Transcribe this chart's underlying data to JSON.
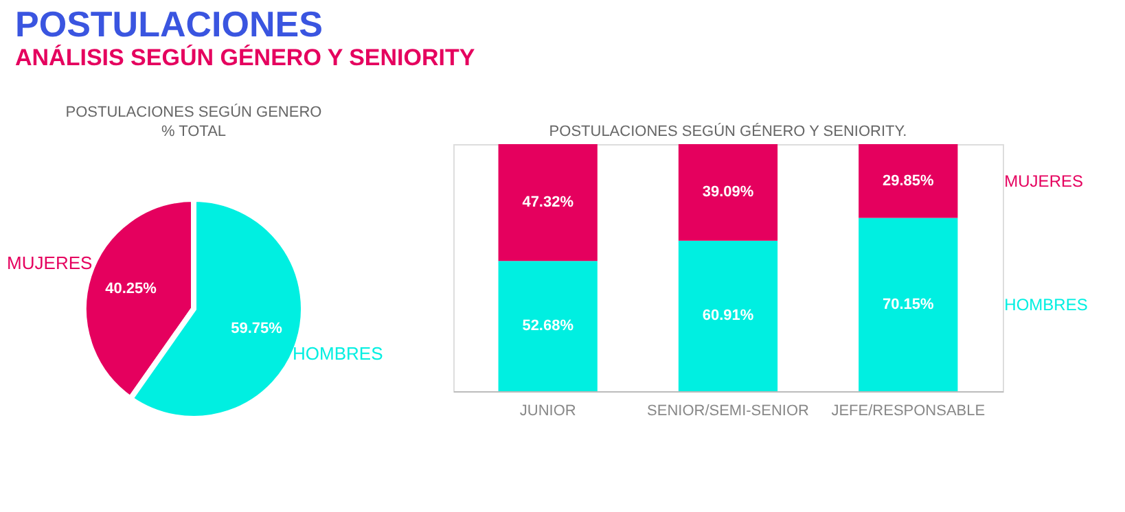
{
  "chart_data": [
    {
      "type": "other",
      "title": "POSTULACIONES",
      "subtitle": "ANÁLISIS SEGÚN GÉNERO Y SENIORITY"
    },
    {
      "type": "pie",
      "title": "POSTULACIONES SEGÚN GENERO",
      "subtitle": "% TOTAL",
      "categories": [
        "MUJERES",
        "HOMBRES"
      ],
      "values": [
        40.25,
        59.75
      ],
      "colors": [
        "#e5005e",
        "#00efe1"
      ],
      "value_labels": [
        "40.25%",
        "59.75%"
      ]
    },
    {
      "type": "bar",
      "title": "POSTULACIONES SEGÚN GÉNERO Y SENIORITY.",
      "categories": [
        "JUNIOR",
        "SENIOR/SEMI-SENIOR",
        "JEFE/RESPONSABLE"
      ],
      "stacked": true,
      "tick_labels": "x",
      "legend": "right",
      "series": [
        {
          "name": "HOMBRES",
          "color": "#00efe1",
          "values": [
            52.68,
            60.91,
            70.15
          ],
          "value_labels": [
            "52.68%",
            "60.91%",
            "70.15%"
          ]
        },
        {
          "name": "MUJERES",
          "color": "#e5005e",
          "values": [
            47.32,
            39.09,
            29.85
          ],
          "value_labels": [
            "47.32%",
            "39.09%",
            "29.85%"
          ]
        }
      ]
    }
  ]
}
